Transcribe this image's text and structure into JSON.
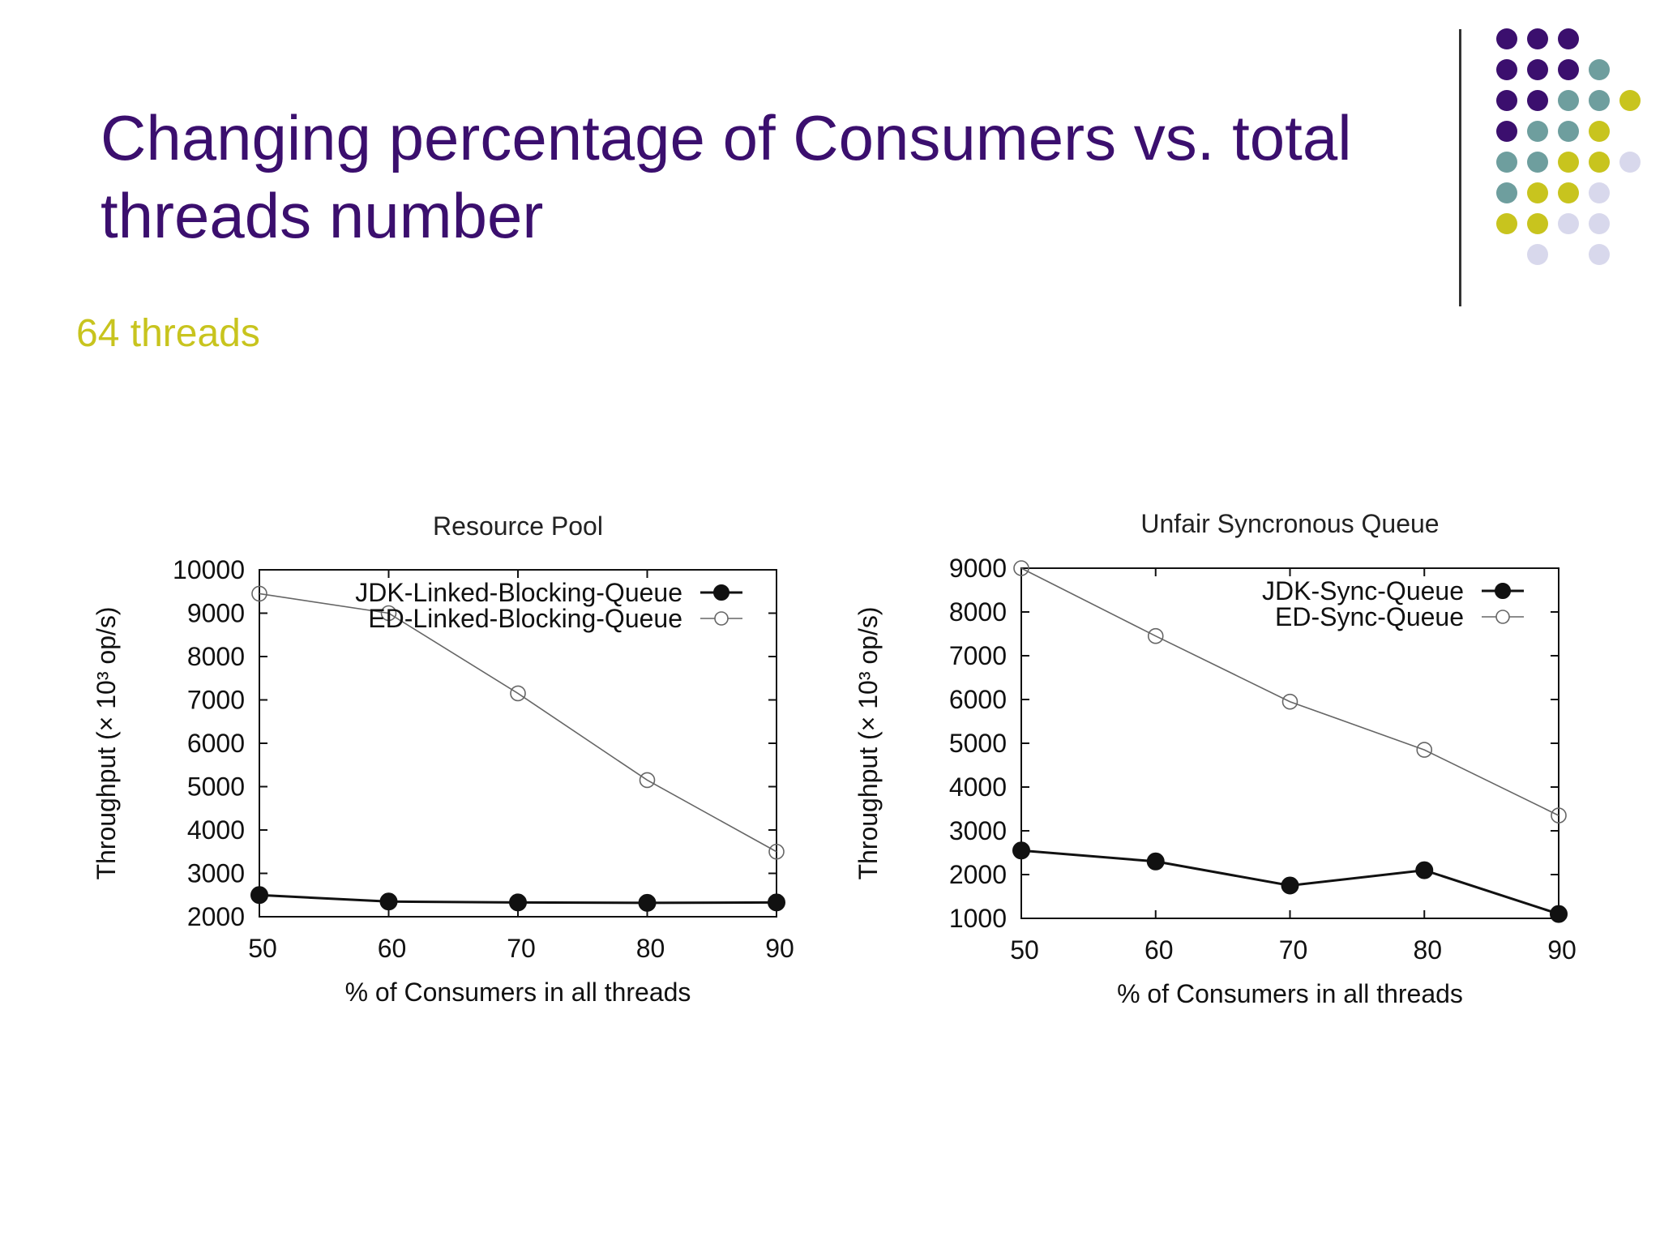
{
  "slide": {
    "title": "Changing percentage of Consumers vs. total threads number",
    "subtitle": "64 threads"
  },
  "colors": {
    "title": "#3b0f6e",
    "subtitle": "#c8c41e",
    "dot_palette": [
      "#3b0f6e",
      "#6e9e9e",
      "#c8c41e",
      "#d8d8ec"
    ]
  },
  "decoration": {
    "dot_rows": [
      [
        "#3b0f6e",
        "#3b0f6e",
        "#3b0f6e",
        null,
        null
      ],
      [
        "#3b0f6e",
        "#3b0f6e",
        "#3b0f6e",
        "#6e9e9e",
        null
      ],
      [
        "#3b0f6e",
        "#3b0f6e",
        "#6e9e9e",
        "#6e9e9e",
        "#c8c41e"
      ],
      [
        "#3b0f6e",
        "#6e9e9e",
        "#6e9e9e",
        "#c8c41e",
        null
      ],
      [
        "#6e9e9e",
        "#6e9e9e",
        "#c8c41e",
        "#c8c41e",
        "#d8d8ec"
      ],
      [
        "#6e9e9e",
        "#c8c41e",
        "#c8c41e",
        "#d8d8ec",
        null
      ],
      [
        "#c8c41e",
        "#c8c41e",
        "#d8d8ec",
        "#d8d8ec",
        null
      ],
      [
        null,
        "#d8d8ec",
        null,
        "#d8d8ec",
        null
      ]
    ]
  },
  "chart_data": [
    {
      "type": "line",
      "title": "Resource Pool",
      "xlabel": "% of Consumers in all threads",
      "ylabel": "Throughput (× 10³ op/s)",
      "x": [
        50,
        60,
        70,
        80,
        90
      ],
      "xticks": [
        50,
        60,
        70,
        80,
        90
      ],
      "yticks": [
        2000,
        3000,
        4000,
        5000,
        6000,
        7000,
        8000,
        9000,
        10000
      ],
      "xlim": [
        50,
        90
      ],
      "ylim": [
        2000,
        10000
      ],
      "legend_position": "top-right",
      "grid": false,
      "series": [
        {
          "name": "JDK-Linked-Blocking-Queue",
          "marker": "filled-circle",
          "color": "#111111",
          "values": [
            2500,
            2350,
            2330,
            2320,
            2330
          ]
        },
        {
          "name": "ED-Linked-Blocking-Queue",
          "marker": "open-circle",
          "color": "#666666",
          "values": [
            9450,
            9000,
            7150,
            5150,
            3500
          ]
        }
      ]
    },
    {
      "type": "line",
      "title": "Unfair Syncronous Queue",
      "xlabel": "% of Consumers in all threads",
      "ylabel": "Throughput (× 10³ op/s)",
      "x": [
        50,
        60,
        70,
        80,
        90
      ],
      "xticks": [
        50,
        60,
        70,
        80,
        90
      ],
      "yticks": [
        1000,
        2000,
        3000,
        4000,
        5000,
        6000,
        7000,
        8000,
        9000
      ],
      "xlim": [
        50,
        90
      ],
      "ylim": [
        1000,
        9000
      ],
      "legend_position": "top-right",
      "grid": false,
      "series": [
        {
          "name": "JDK-Sync-Queue",
          "marker": "filled-circle",
          "color": "#111111",
          "values": [
            2550,
            2300,
            1750,
            2100,
            1100
          ]
        },
        {
          "name": "ED-Sync-Queue",
          "marker": "open-circle",
          "color": "#666666",
          "values": [
            9000,
            7450,
            5950,
            4850,
            3350
          ]
        }
      ]
    }
  ]
}
